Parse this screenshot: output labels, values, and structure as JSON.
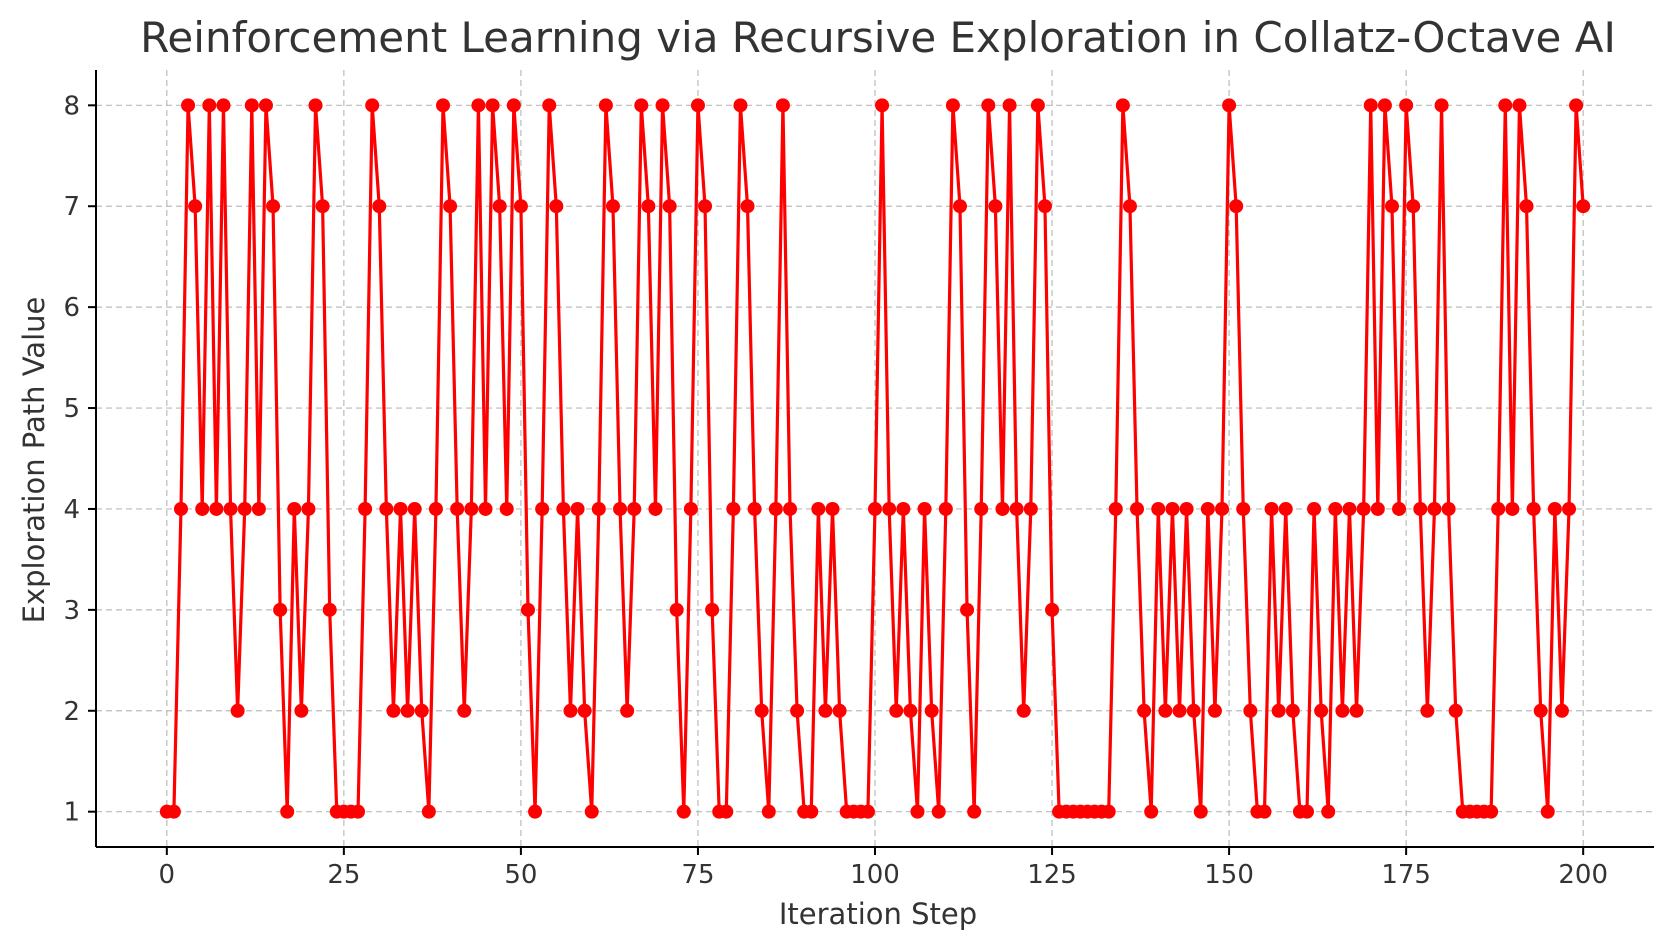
{
  "chart_data": {
    "type": "line",
    "title": "Reinforcement Learning via Recursive Exploration in Collatz-Octave AI",
    "xlabel": "Iteration Step",
    "ylabel": "Exploration Path Value",
    "xlim": [
      -10,
      210
    ],
    "ylim": [
      0.65,
      8.35
    ],
    "x_ticks": [
      0,
      25,
      50,
      75,
      100,
      125,
      150,
      175,
      200
    ],
    "y_ticks": [
      1,
      2,
      3,
      4,
      5,
      6,
      7,
      8
    ],
    "grid": true,
    "marker": "circle",
    "series_color": "#ff0000",
    "series": [
      {
        "x_start": 0,
        "x_step": 1,
        "values": [
          1,
          1,
          4,
          8,
          7,
          4,
          8,
          4,
          8,
          4,
          2,
          4,
          8,
          4,
          8,
          7,
          3,
          1,
          4,
          2,
          4,
          8,
          7,
          3,
          1,
          1,
          1,
          1,
          4,
          8,
          7,
          4,
          2,
          4,
          2,
          4,
          2,
          1,
          4,
          8,
          7,
          4,
          2,
          4,
          8,
          4,
          8,
          7,
          4,
          8,
          7,
          3,
          1,
          4,
          8,
          7,
          4,
          2,
          4,
          2,
          1,
          4,
          8,
          7,
          4,
          2,
          4,
          8,
          7,
          4,
          8,
          7,
          3,
          1,
          4,
          8,
          7,
          3,
          1,
          1,
          4,
          8,
          7,
          4,
          2,
          1,
          4,
          8,
          4,
          2,
          1,
          1,
          4,
          2,
          4,
          2,
          1,
          1,
          1,
          1,
          4,
          8,
          4,
          2,
          4,
          2,
          1,
          4,
          2,
          1,
          4,
          8,
          7,
          3,
          1,
          4,
          8,
          7,
          4,
          8,
          4,
          2,
          4,
          8,
          7,
          3,
          1,
          1,
          1,
          1,
          1,
          1,
          1,
          1,
          4,
          8,
          7,
          4,
          2,
          1,
          4,
          2,
          4,
          2,
          4,
          2,
          1,
          4,
          2,
          4,
          8,
          7,
          4,
          2,
          1,
          1,
          4,
          2,
          4,
          2,
          1,
          1,
          4,
          2,
          1,
          4,
          2,
          4,
          2,
          4,
          8,
          4,
          8,
          7,
          4,
          8,
          7,
          4,
          2,
          4,
          8,
          4,
          2,
          1,
          1,
          1,
          1,
          1,
          4,
          8,
          4,
          8,
          7,
          4,
          2,
          1,
          4,
          2,
          4,
          8,
          7
        ]
      }
    ]
  }
}
